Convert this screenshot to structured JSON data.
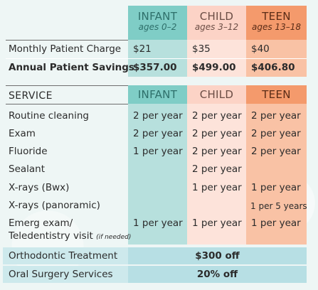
{
  "top_table": {
    "columns": [
      {
        "name": "INFANT",
        "ages": "ages 0–2"
      },
      {
        "name": "CHILD",
        "ages": "ages 3–12"
      },
      {
        "name": "TEEN",
        "ages": "ages 13–18"
      }
    ],
    "rows": [
      {
        "label": "Monthly Patient Charge",
        "values": [
          "$21",
          "$35",
          "$40"
        ]
      },
      {
        "label": "Annual Patient Savings",
        "values": [
          "$357.00",
          "$499.00",
          "$406.80"
        ]
      }
    ]
  },
  "service_table": {
    "header_label": "SERVICE",
    "columns": [
      "INFANT",
      "CHILD",
      "TEEN"
    ],
    "rows": [
      {
        "label": "Routine cleaning",
        "values": [
          "2 per year",
          "2 per year",
          "2 per year"
        ]
      },
      {
        "label": "Exam",
        "values": [
          "2 per year",
          "2 per year",
          "2 per year"
        ]
      },
      {
        "label": "Fluoride",
        "values": [
          "1 per year",
          "2 per year",
          "2 per year"
        ]
      },
      {
        "label": "Sealant",
        "values": [
          "",
          "2 per year",
          ""
        ]
      },
      {
        "label": "X-rays (Bwx)",
        "values": [
          "",
          "1 per year",
          "1 per year"
        ]
      },
      {
        "label": "X-rays (panoramic)",
        "values": [
          "",
          "",
          "1 per 5 years"
        ]
      },
      {
        "label": "Emerg exam/",
        "label_line2": "Teledentistry visit",
        "label_note": "(if needed)",
        "values": [
          "1 per year",
          "1 per year",
          "1 per year"
        ]
      }
    ]
  },
  "discounts": [
    {
      "label": "Orthodontic Treatment",
      "value": "$300 off"
    },
    {
      "label": "Oral Surgery Services",
      "value": "20% off"
    }
  ],
  "colors": {
    "infant": "#7fcdc6",
    "child": "#fcd3c6",
    "teen": "#f49a6c",
    "discount_bar": "#cde9ec"
  }
}
